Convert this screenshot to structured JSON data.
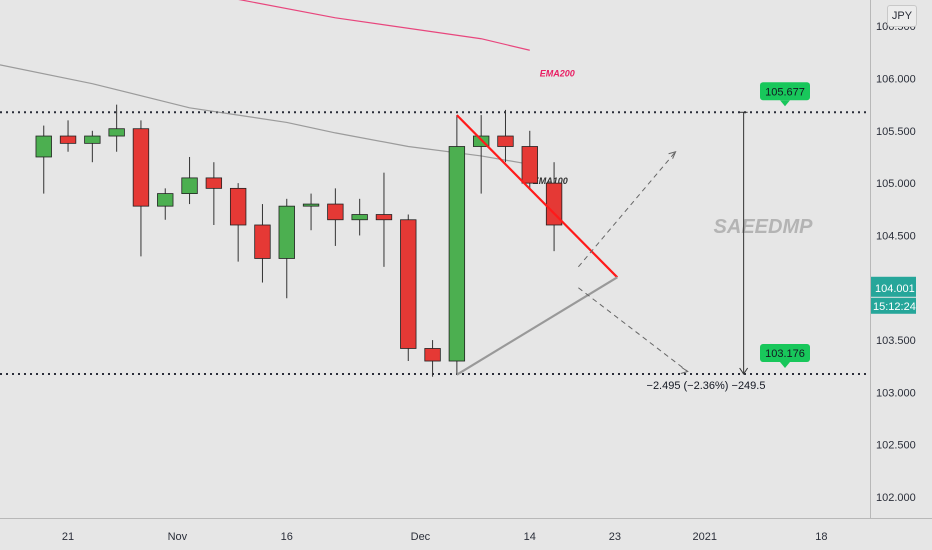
{
  "chart_data": {
    "type": "candlestick",
    "symbol_currency": "JPY",
    "watermark": "SAEEDMP",
    "y_ticks": [
      "106.000",
      "105.500",
      "105.000",
      "104.500",
      "104.000",
      "103.500",
      "103.000",
      "102.500",
      "102.000"
    ],
    "y_tick_values": [
      106.0,
      105.5,
      105.0,
      104.5,
      104.0,
      103.5,
      103.0,
      102.5,
      102.0
    ],
    "y_top_partial": "106.500",
    "ylim": [
      101.8,
      106.75
    ],
    "x_ticks": [
      "21",
      "Nov",
      "16",
      "Dec",
      "14",
      "23",
      "2021",
      "18"
    ],
    "x_tick_index": [
      1,
      5.5,
      10,
      15.5,
      20,
      23.5,
      27.2,
      32
    ],
    "x_range": [
      -1.8,
      34
    ],
    "last_price": "104.001",
    "countdown": "15:12:24",
    "upper_level": {
      "label": "105.677",
      "value": 105.677
    },
    "lower_level": {
      "label": "103.176",
      "value": 103.176
    },
    "measure_text": "−2.495 (−2.36%) −249.5",
    "indicators": [
      {
        "name": "EMA200",
        "color": "#e91e63",
        "points": [
          [
            4.5,
            106.95
          ],
          [
            7,
            106.8
          ],
          [
            12,
            106.58
          ],
          [
            18,
            106.38
          ],
          [
            20,
            106.27
          ]
        ]
      },
      {
        "name": "EMA100",
        "color": "#888888",
        "points": [
          [
            -1.8,
            106.13
          ],
          [
            2,
            105.95
          ],
          [
            6,
            105.72
          ],
          [
            8,
            105.65
          ],
          [
            10,
            105.58
          ],
          [
            12,
            105.48
          ],
          [
            15,
            105.35
          ],
          [
            18,
            105.26
          ],
          [
            20,
            105.18
          ]
        ]
      }
    ],
    "candles": [
      {
        "o": 105.25,
        "h": 105.55,
        "l": 104.9,
        "c": 105.45
      },
      {
        "o": 105.45,
        "h": 105.6,
        "l": 105.3,
        "c": 105.38
      },
      {
        "o": 105.38,
        "h": 105.5,
        "l": 105.2,
        "c": 105.45
      },
      {
        "o": 105.45,
        "h": 105.75,
        "l": 105.3,
        "c": 105.52
      },
      {
        "o": 105.52,
        "h": 105.6,
        "l": 104.3,
        "c": 104.78
      },
      {
        "o": 104.78,
        "h": 104.95,
        "l": 104.65,
        "c": 104.9
      },
      {
        "o": 104.9,
        "h": 105.25,
        "l": 104.8,
        "c": 105.05
      },
      {
        "o": 105.05,
        "h": 105.2,
        "l": 104.6,
        "c": 104.95
      },
      {
        "o": 104.95,
        "h": 105.0,
        "l": 104.25,
        "c": 104.6
      },
      {
        "o": 104.6,
        "h": 104.8,
        "l": 104.05,
        "c": 104.28
      },
      {
        "o": 104.28,
        "h": 104.85,
        "l": 103.9,
        "c": 104.78
      },
      {
        "o": 104.78,
        "h": 104.9,
        "l": 104.55,
        "c": 104.8
      },
      {
        "o": 104.8,
        "h": 104.95,
        "l": 104.4,
        "c": 104.65
      },
      {
        "o": 104.65,
        "h": 104.85,
        "l": 104.5,
        "c": 104.7
      },
      {
        "o": 104.7,
        "h": 105.1,
        "l": 104.2,
        "c": 104.65
      },
      {
        "o": 104.65,
        "h": 104.7,
        "l": 103.3,
        "c": 103.42
      },
      {
        "o": 103.42,
        "h": 103.5,
        "l": 103.15,
        "c": 103.3
      },
      {
        "o": 103.3,
        "h": 105.65,
        "l": 103.18,
        "c": 105.35
      },
      {
        "o": 105.35,
        "h": 105.65,
        "l": 104.9,
        "c": 105.45
      },
      {
        "o": 105.45,
        "h": 105.7,
        "l": 105.2,
        "c": 105.35
      },
      {
        "o": 105.35,
        "h": 105.5,
        "l": 104.95,
        "c": 105.0
      },
      {
        "o": 105.0,
        "h": 105.2,
        "l": 104.35,
        "c": 104.6
      }
    ]
  }
}
